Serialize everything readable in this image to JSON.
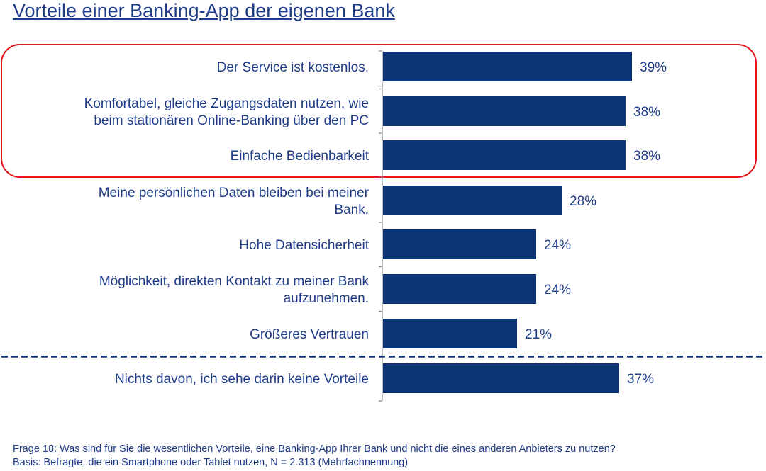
{
  "title": "Vorteile einer Banking-App der eigenen Bank",
  "chart_data": {
    "type": "bar",
    "orientation": "horizontal",
    "categories": [
      [
        "Der Service ist kostenlos."
      ],
      [
        "Komfortabel, gleiche Zugangsdaten nutzen, wie",
        "beim stationären Online-Banking über den PC"
      ],
      [
        "Einfache Bedienbarkeit"
      ],
      [
        "Meine persönlichen Daten bleiben bei meiner",
        "Bank."
      ],
      [
        "Hohe Datensicherheit"
      ],
      [
        "Möglichkeit, direkten Kontakt zu meiner Bank",
        "aufzunehmen."
      ],
      [
        "Größeres Vertrauen"
      ],
      [
        "Nichts davon, ich sehe darin keine Vorteile"
      ]
    ],
    "values": [
      39,
      38,
      38,
      28,
      24,
      24,
      21,
      37
    ],
    "value_labels": [
      "39%",
      "38%",
      "38%",
      "28%",
      "24%",
      "24%",
      "21%",
      "37%"
    ],
    "unit": "%",
    "highlighted_categories": [
      0,
      1,
      2
    ],
    "separator_after_index": 6,
    "bar_color": "#0e3478",
    "highlight_color": "#e0161b",
    "text_color": "#1f3c88"
  },
  "notes": [
    "Frage 18: Was sind für Sie die wesentlichen Vorteile, eine Banking-App Ihrer Bank und nicht die eines anderen Anbieters zu nutzen?",
    "Basis: Befragte, die ein Smartphone oder Tablet nutzen, N = 2.313 (Mehrfachnennung)"
  ]
}
